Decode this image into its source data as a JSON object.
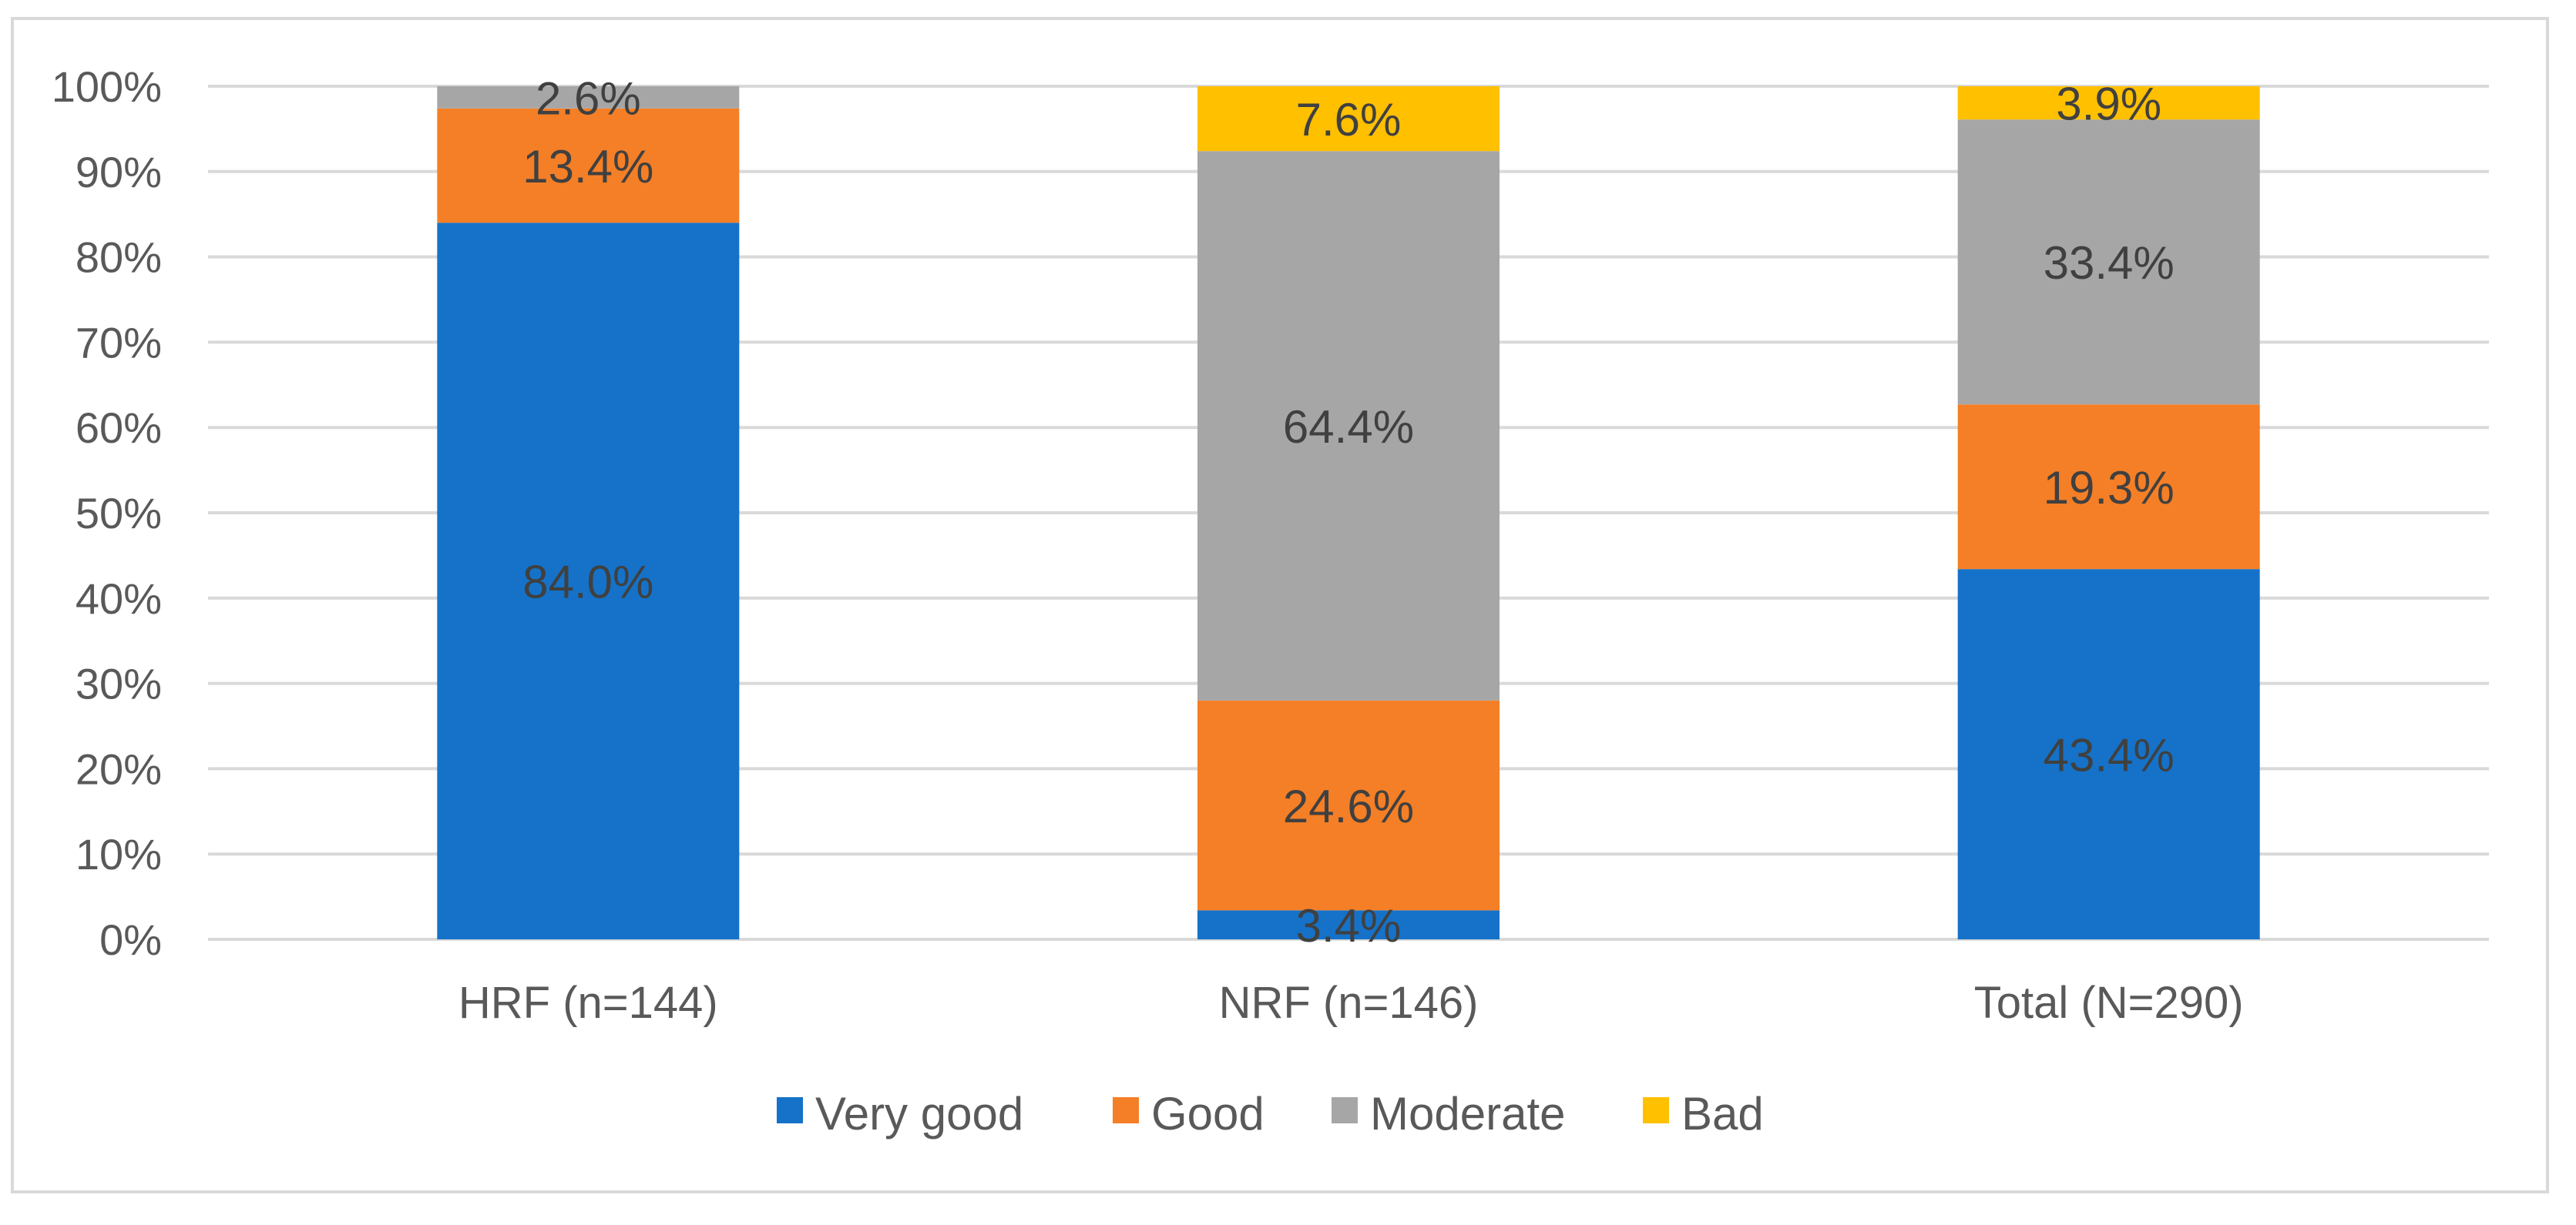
{
  "chart_data": {
    "type": "bar",
    "stacked": true,
    "categories": [
      "HRF (n=144)",
      "NRF (n=146)",
      "Total (N=290)"
    ],
    "series": [
      {
        "name": "Very good",
        "color": "#1572c8",
        "values": [
          84.0,
          3.4,
          43.4
        ],
        "labels": [
          "84.0%",
          "3.4%",
          "43.4%"
        ]
      },
      {
        "name": "Good",
        "color": "#f57f26",
        "values": [
          13.4,
          24.6,
          19.3
        ],
        "labels": [
          "13.4%",
          "24.6%",
          "19.3%"
        ]
      },
      {
        "name": "Moderate",
        "color": "#a6a6a6",
        "values": [
          2.6,
          64.4,
          33.4
        ],
        "labels": [
          "2.6%",
          "64.4%",
          "33.4%"
        ]
      },
      {
        "name": "Bad",
        "color": "#ffc000",
        "values": [
          0,
          7.6,
          3.9
        ],
        "labels": [
          "",
          "7.6%",
          "3.9%"
        ]
      }
    ],
    "y_ticks": [
      "0%",
      "10%",
      "20%",
      "30%",
      "40%",
      "50%",
      "60%",
      "70%",
      "80%",
      "90%",
      "100%"
    ],
    "ylim": [
      0,
      100
    ],
    "grid": true,
    "legend_position": "bottom",
    "title": "",
    "xlabel": "",
    "ylabel": ""
  }
}
